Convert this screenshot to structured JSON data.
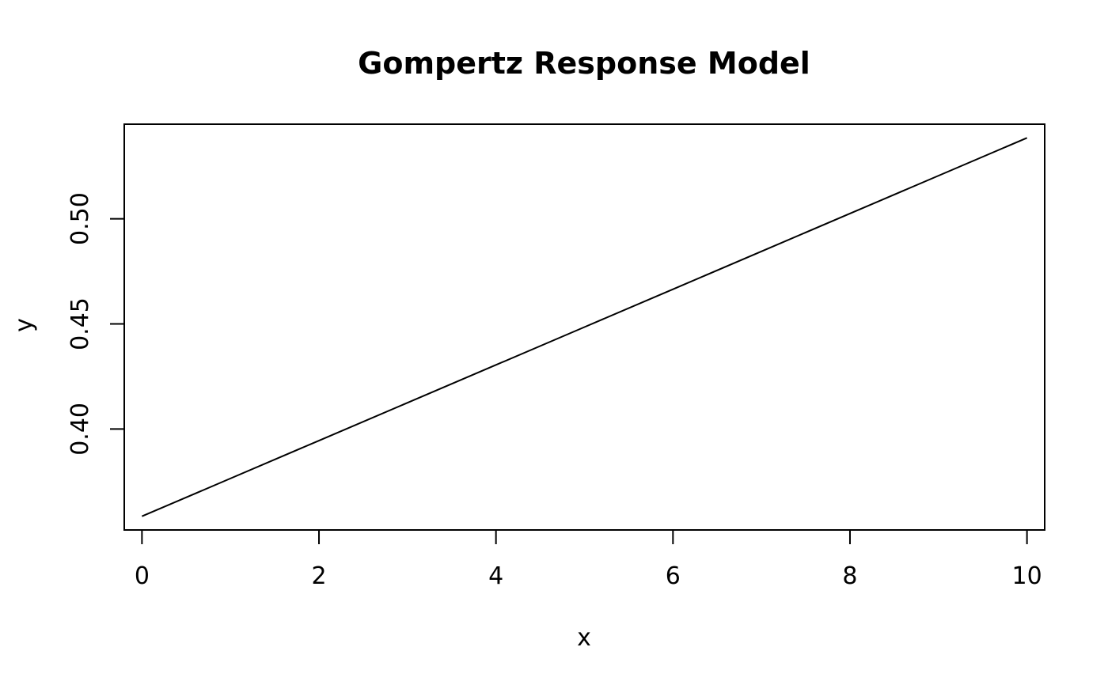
{
  "chart_data": {
    "type": "line",
    "title": "Gompertz Response Model",
    "xlabel": "x",
    "ylabel": "y",
    "xlim": [
      -0.2,
      10.2
    ],
    "ylim": [
      0.352,
      0.545
    ],
    "x_ticks": [
      0,
      2,
      4,
      6,
      8,
      10
    ],
    "x_tick_labels": [
      "0",
      "2",
      "4",
      "6",
      "8",
      "10"
    ],
    "y_ticks": [
      0.4,
      0.45,
      0.5
    ],
    "y_tick_labels": [
      "0.40",
      "0.45",
      "0.50"
    ],
    "grid": false,
    "legend": "none",
    "line_color": "#000000",
    "series": [
      {
        "x": [
          0,
          1,
          2,
          3,
          4,
          5,
          6,
          7,
          8,
          9,
          10
        ],
        "values": [
          0.3585,
          0.3765,
          0.3945,
          0.4125,
          0.4305,
          0.4485,
          0.4665,
          0.4845,
          0.5025,
          0.5205,
          0.5385
        ]
      }
    ]
  }
}
